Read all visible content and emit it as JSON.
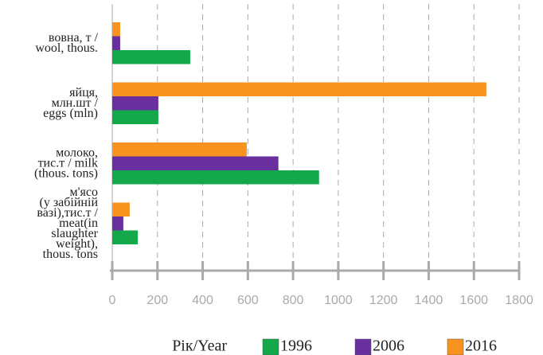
{
  "chart_data": {
    "type": "barh",
    "categories": [
      "вовна, т /\nwool, thous.",
      "яйця,\nмлн.шт /\neggs (mln)",
      "молоко,\nтис.т / milk\n(thous. tons)",
      "м'ясо\n(у забійній\nвазі),тис.т /\nmeat(in\nslaughter\nweight),\nthous. tons"
    ],
    "series": [
      {
        "name": "1996",
        "color": "#13a84a",
        "values": [
          345,
          204,
          915,
          113
        ]
      },
      {
        "name": "2006",
        "color": "#6a2f9e",
        "values": [
          35,
          204,
          735,
          49
        ]
      },
      {
        "name": "2016",
        "color": "#f7931e",
        "values": [
          35,
          1655,
          595,
          77
        ]
      }
    ],
    "legend_title": "Рік/Year",
    "xlim": [
      0,
      1800
    ],
    "xticks": [
      0,
      200,
      400,
      600,
      800,
      1000,
      1200,
      1400,
      1600,
      1800
    ],
    "grid": true
  }
}
